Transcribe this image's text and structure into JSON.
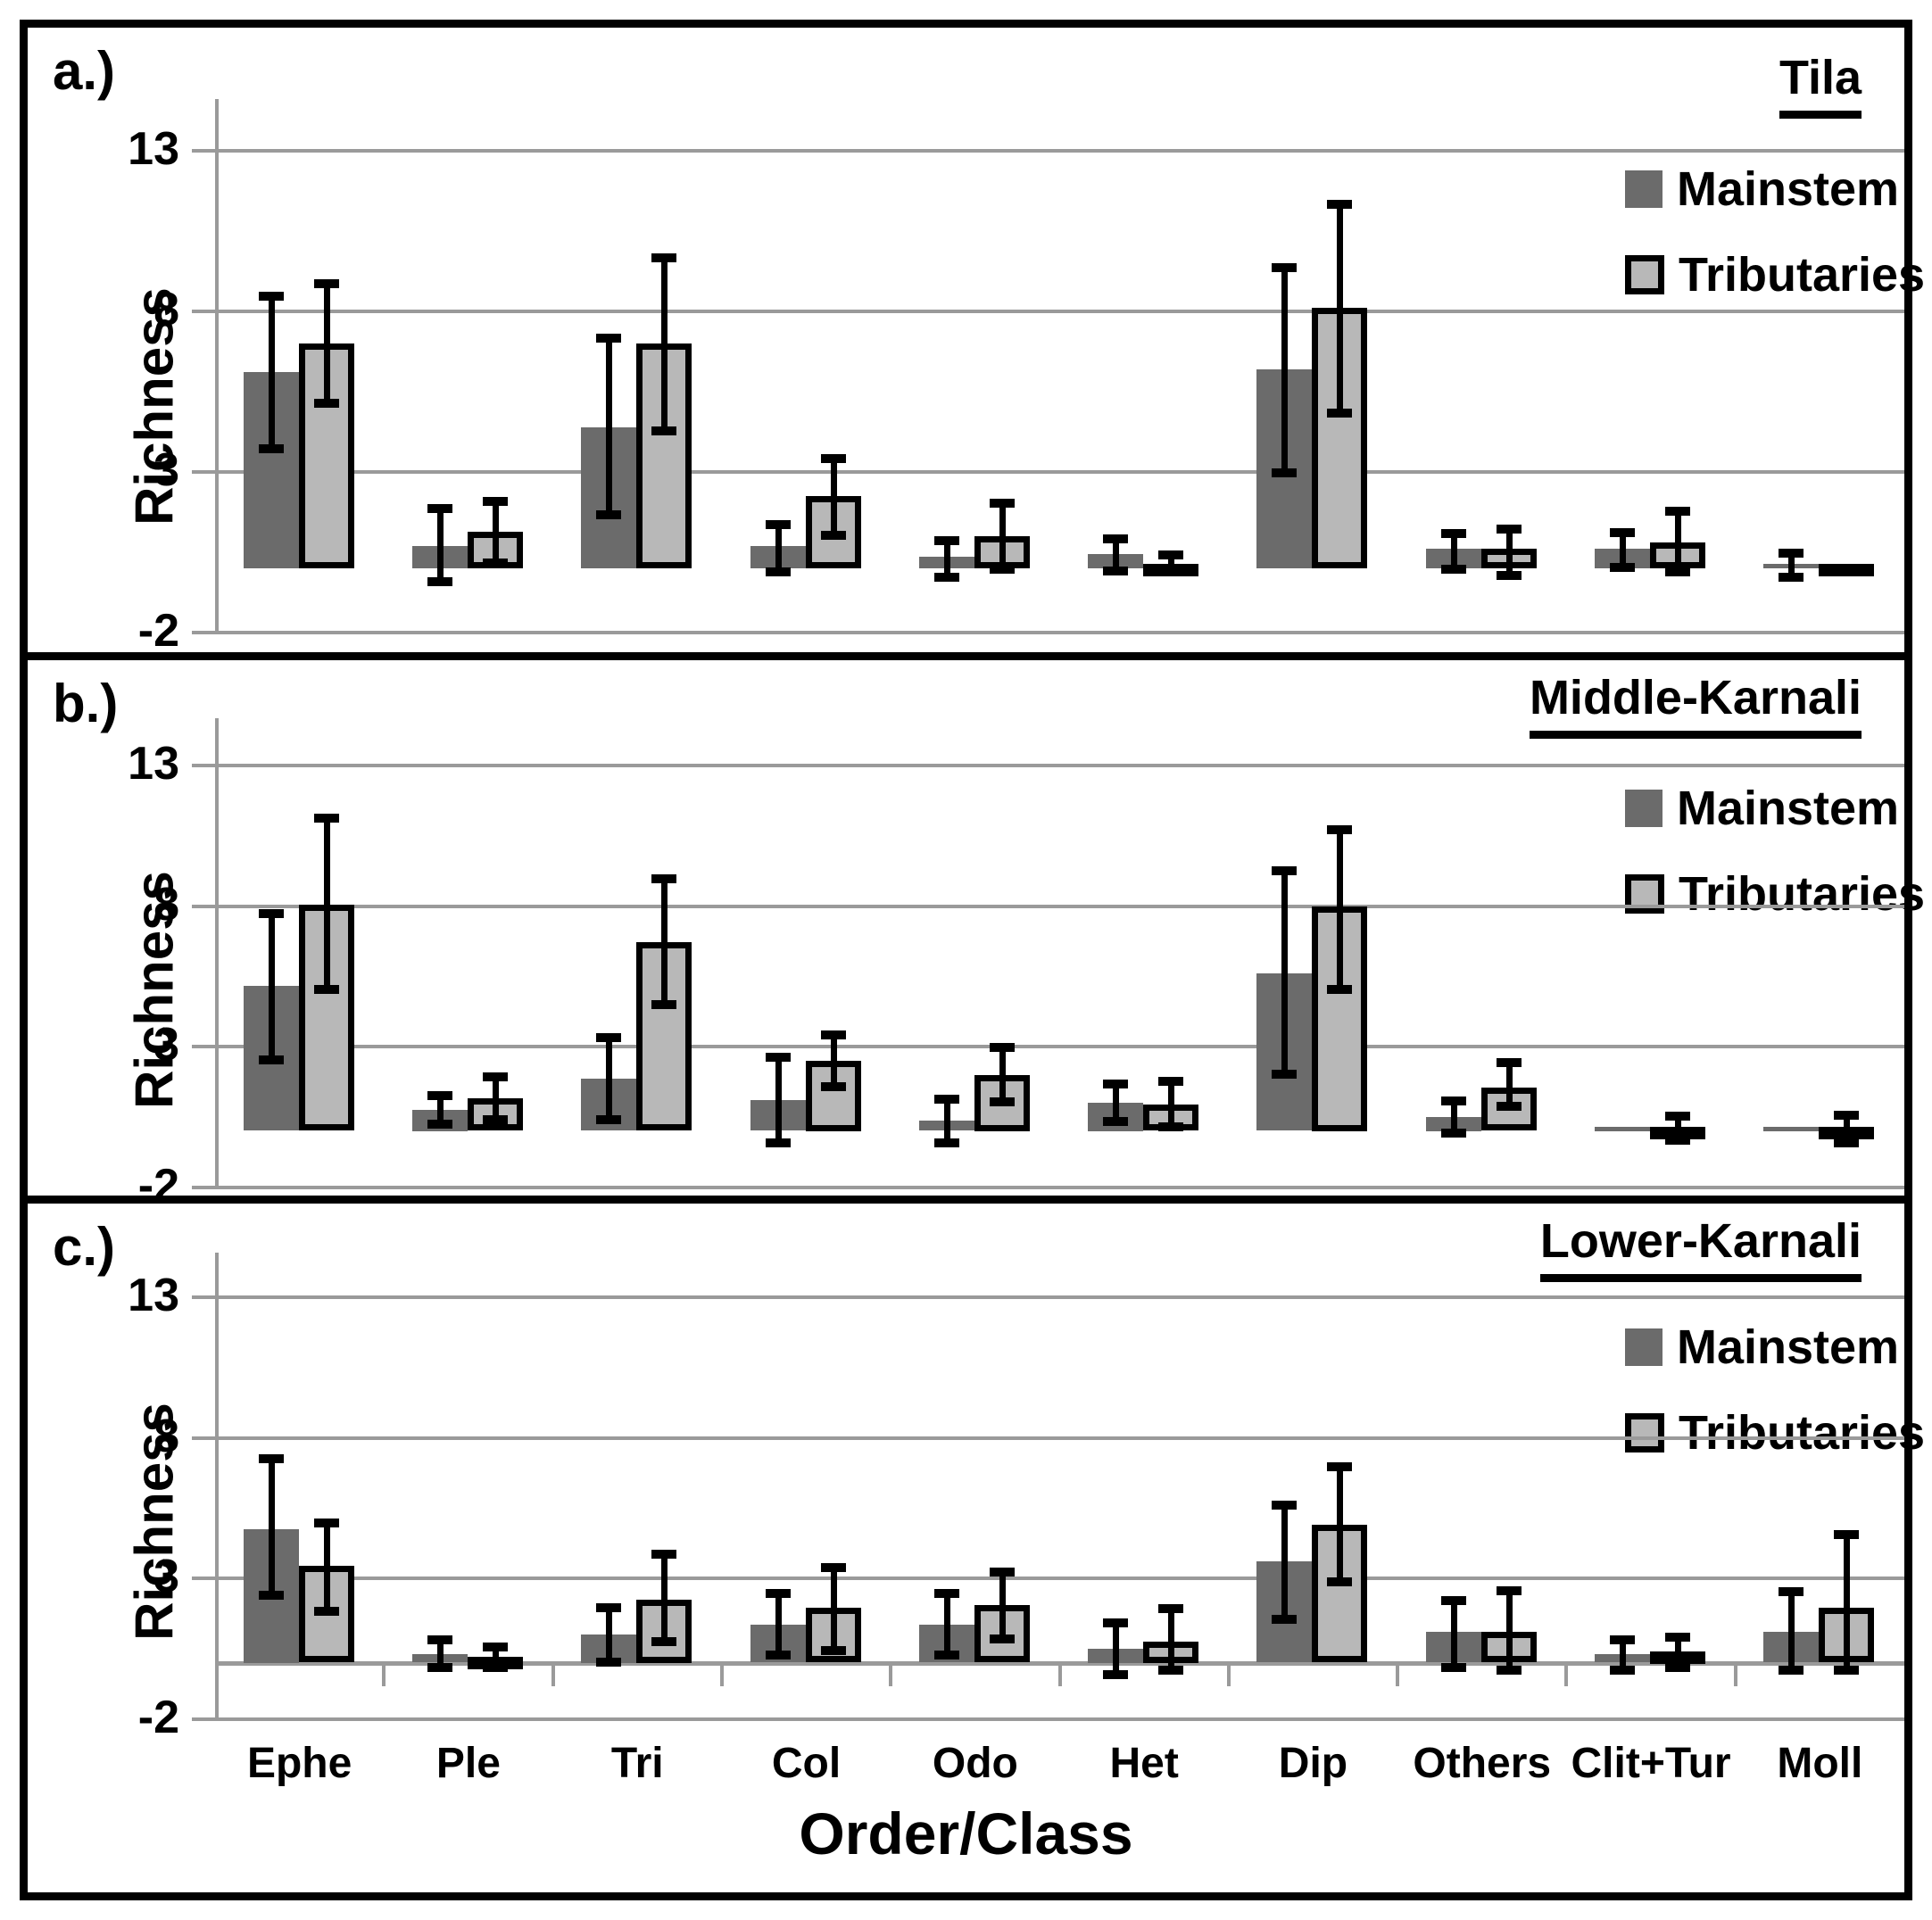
{
  "figure": {
    "ylabel": "Richness",
    "xlabel": "Order/Class",
    "y_ticks": [
      "13",
      "8",
      "3",
      "-2"
    ],
    "categories": [
      "Ephe",
      "Ple",
      "Tri",
      "Col",
      "Odo",
      "Het",
      "Dip",
      "Others",
      "Clit+Tur",
      "Moll"
    ],
    "legend": [
      "Mainstem",
      "Tributaries"
    ],
    "colors": {
      "mainstem": "#6b6b6b",
      "tributaries": "#b8b8b8",
      "gridline": "#9a9a9a",
      "error_bar": "#000000"
    }
  },
  "chart_data": [
    {
      "id": "a",
      "label": "a.)",
      "title": "Tila",
      "type": "bar",
      "ylabel": "Richness",
      "ylim": [
        -2,
        14.8
      ],
      "grid": "horizontal",
      "legend_position": "top-right",
      "categories": [
        "Ephe",
        "Ple",
        "Tri",
        "Col",
        "Odo",
        "Het",
        "Dip",
        "Others",
        "Clit+Tur",
        "Moll"
      ],
      "series": [
        {
          "name": "Mainstem",
          "values": [
            6.1,
            0.7,
            4.4,
            0.7,
            0.35,
            0.45,
            6.2,
            0.6,
            0.6,
            0.1
          ],
          "err_plus": [
            2.4,
            1.2,
            2.8,
            0.7,
            0.55,
            0.5,
            3.2,
            0.5,
            0.55,
            0.4
          ],
          "err_minus": [
            2.4,
            1.15,
            2.75,
            0.85,
            0.65,
            0.55,
            3.25,
            0.65,
            0.6,
            0.4
          ]
        },
        {
          "name": "Tributaries",
          "values": [
            7.0,
            1.15,
            7.0,
            2.25,
            1.0,
            0.15,
            8.1,
            0.6,
            0.8,
            0.05
          ],
          "err_plus": [
            1.9,
            0.95,
            2.7,
            1.2,
            1.05,
            0.3,
            3.25,
            0.65,
            1.0,
            0
          ],
          "err_minus": [
            1.9,
            1.0,
            2.75,
            1.25,
            1.05,
            0.3,
            3.3,
            0.85,
            0.95,
            0
          ]
        }
      ]
    },
    {
      "id": "b",
      "label": "b.)",
      "title": "Middle-Karnali",
      "type": "bar",
      "ylabel": "Richness",
      "ylim": [
        -2,
        14.8
      ],
      "grid": "horizontal",
      "legend_position": "top-right",
      "categories": [
        "Ephe",
        "Ple",
        "Tri",
        "Col",
        "Odo",
        "Het",
        "Dip",
        "Others",
        "Clit+Tur",
        "Moll"
      ],
      "series": [
        {
          "name": "Mainstem",
          "values": [
            5.15,
            0.75,
            1.85,
            1.1,
            0.35,
            1.0,
            5.6,
            0.5,
            0.05,
            0.05
          ],
          "err_plus": [
            2.6,
            0.55,
            1.5,
            1.55,
            0.8,
            0.7,
            3.7,
            0.6,
            0,
            0
          ],
          "err_minus": [
            2.65,
            0.55,
            1.5,
            1.55,
            0.8,
            0.7,
            3.6,
            0.6,
            0,
            0
          ]
        },
        {
          "name": "Tributaries",
          "values": [
            8.05,
            1.15,
            6.7,
            2.5,
            2.0,
            0.95,
            8.0,
            1.55,
            0.1,
            0.15
          ],
          "err_plus": [
            3.1,
            0.8,
            2.3,
            0.95,
            1.0,
            0.85,
            2.75,
            0.9,
            0.45,
            0.45
          ],
          "err_minus": [
            3.05,
            0.8,
            2.25,
            0.95,
            1.0,
            0.85,
            3.0,
            0.7,
            0.45,
            0.6
          ]
        }
      ]
    },
    {
      "id": "c",
      "label": "c.)",
      "title": "Lower-Karnali",
      "type": "bar",
      "ylabel": "Richness",
      "xlabel": "Order/Class",
      "ylim": [
        -2,
        14.8
      ],
      "grid": "horizontal",
      "legend_position": "top-right",
      "categories": [
        "Ephe",
        "Ple",
        "Tri",
        "Col",
        "Odo",
        "Het",
        "Dip",
        "Others",
        "Clit+Tur",
        "Moll"
      ],
      "series": [
        {
          "name": "Mainstem",
          "values": [
            4.75,
            0.3,
            1.0,
            1.35,
            1.35,
            0.5,
            3.6,
            1.1,
            0.3,
            1.1
          ],
          "err_plus": [
            2.55,
            0.55,
            1.0,
            1.15,
            1.15,
            0.95,
            2.05,
            1.15,
            0.55,
            1.45
          ],
          "err_minus": [
            2.4,
            0.5,
            1.0,
            1.1,
            1.1,
            0.95,
            2.1,
            1.3,
            0.6,
            1.4
          ]
        },
        {
          "name": "Tributaries",
          "values": [
            3.45,
            0.2,
            2.25,
            1.95,
            2.05,
            0.75,
            4.9,
            1.1,
            0.4,
            1.95
          ],
          "err_plus": [
            1.55,
            0.4,
            1.65,
            1.45,
            1.2,
            1.2,
            2.1,
            1.5,
            0.55,
            2.65
          ],
          "err_minus": [
            1.65,
            0.4,
            1.55,
            1.55,
            1.25,
            1.05,
            2.05,
            1.4,
            0.6,
            2.25
          ]
        }
      ]
    }
  ]
}
